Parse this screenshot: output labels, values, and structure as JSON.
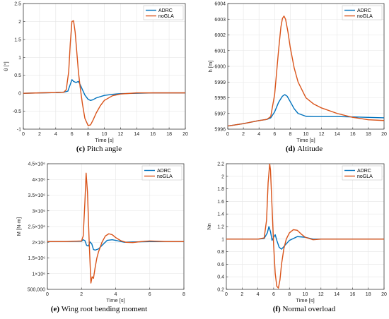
{
  "colors": {
    "ADRC": "#0072BD",
    "noGLA": "#D95319",
    "grid": "#e6e6e6",
    "axis": "#262626"
  },
  "chart_data": [
    {
      "type": "line",
      "caption_label": "(c)",
      "caption_text": "Pitch angle",
      "xlabel": "Time [s]",
      "ylabel": "θ [°]",
      "xlim": [
        0,
        20
      ],
      "ylim": [
        -1,
        2.5
      ],
      "xticks": [
        0,
        2,
        4,
        6,
        8,
        10,
        12,
        14,
        16,
        18,
        20
      ],
      "yticks": [
        -1,
        -0.5,
        0,
        0.5,
        1,
        1.5,
        2,
        2.5
      ],
      "ytick_labels": [
        "-1",
        "-0.5",
        "0",
        "0.5",
        "1",
        "1.5",
        "2",
        "2.5"
      ],
      "grid": true,
      "legend": "top-right",
      "series": [
        {
          "name": "ADRC",
          "x": [
            0,
            2,
            4,
            5,
            5.5,
            5.8,
            6.0,
            6.2,
            6.5,
            6.8,
            7.0,
            7.3,
            7.6,
            8.0,
            8.3,
            8.6,
            9.0,
            10,
            11,
            12,
            14,
            16,
            18,
            20
          ],
          "y": [
            0.0,
            0.01,
            0.02,
            0.03,
            0.06,
            0.25,
            0.38,
            0.33,
            0.3,
            0.33,
            0.25,
            0.1,
            -0.05,
            -0.17,
            -0.2,
            -0.18,
            -0.13,
            -0.06,
            -0.03,
            -0.01,
            0.0,
            0.01,
            0.01,
            0.01
          ]
        },
        {
          "name": "noGLA",
          "x": [
            0,
            2,
            4,
            5,
            5.3,
            5.6,
            5.8,
            6.0,
            6.2,
            6.4,
            6.6,
            6.8,
            7.0,
            7.3,
            7.6,
            8.0,
            8.3,
            8.6,
            9.0,
            9.5,
            10,
            11,
            12,
            14,
            16,
            18,
            20
          ],
          "y": [
            0.0,
            0.01,
            0.02,
            0.03,
            0.1,
            0.6,
            1.4,
            2.0,
            2.02,
            1.7,
            1.15,
            0.6,
            0.2,
            -0.3,
            -0.7,
            -0.9,
            -0.88,
            -0.75,
            -0.55,
            -0.35,
            -0.2,
            -0.07,
            -0.02,
            0.01,
            0.01,
            0.01,
            0.01
          ]
        }
      ]
    },
    {
      "type": "line",
      "caption_label": "(d)",
      "caption_text": "Altitude",
      "xlabel": "Time [s]",
      "ylabel": "h [m]",
      "xlim": [
        0,
        20
      ],
      "ylim": [
        5996,
        6004
      ],
      "xticks": [
        0,
        2,
        4,
        6,
        8,
        10,
        12,
        14,
        16,
        18,
        20
      ],
      "yticks": [
        5996,
        5997,
        5998,
        5999,
        6000,
        6001,
        6002,
        6003,
        6004
      ],
      "ytick_labels": [
        "5996",
        "5997",
        "5998",
        "5999",
        "6000",
        "6001",
        "6002",
        "6003",
        "6004"
      ],
      "grid": true,
      "legend": "top-right",
      "series": [
        {
          "name": "ADRC",
          "x": [
            0,
            2,
            4,
            5,
            5.5,
            6.0,
            6.5,
            7.0,
            7.3,
            7.6,
            8.0,
            8.5,
            9.0,
            10,
            11,
            12,
            14,
            16,
            18,
            20
          ],
          "y": [
            5996.2,
            5996.35,
            5996.55,
            5996.62,
            5996.72,
            5997.1,
            5997.7,
            5998.1,
            5998.2,
            5998.1,
            5997.75,
            5997.3,
            5997.0,
            5996.82,
            5996.8,
            5996.8,
            5996.8,
            5996.78,
            5996.75,
            5996.72
          ]
        },
        {
          "name": "noGLA",
          "x": [
            0,
            2,
            4,
            5,
            5.5,
            6.0,
            6.5,
            6.8,
            7.0,
            7.2,
            7.4,
            7.7,
            8.0,
            8.5,
            9.0,
            10,
            11,
            12,
            14,
            16,
            18,
            20
          ],
          "y": [
            5996.2,
            5996.35,
            5996.55,
            5996.62,
            5996.8,
            5998.2,
            6001.0,
            6002.5,
            6003.05,
            6003.2,
            6003.0,
            6002.2,
            6001.2,
            5999.9,
            5999.0,
            5998.0,
            5997.6,
            5997.35,
            5997.0,
            5996.75,
            5996.6,
            5996.55
          ]
        }
      ]
    },
    {
      "type": "line",
      "caption_label": "(e)",
      "caption_text": "Wing root bending moment",
      "xlabel": "Time [s]",
      "ylabel": "M [N·m]",
      "xlim": [
        0,
        8
      ],
      "ylim": [
        500000,
        4500000
      ],
      "xticks": [
        0,
        2,
        4,
        6,
        8
      ],
      "yticks": [
        500000,
        1000000,
        1500000,
        2000000,
        2500000,
        3000000,
        3500000,
        4000000,
        4500000
      ],
      "ytick_labels": [
        "500,000",
        "1×10⁶",
        "1.5×10⁶",
        "2×10⁶",
        "2.5×10⁶",
        "3×10⁶",
        "3.5×10⁶",
        "4×10⁶",
        "4.5×10⁶"
      ],
      "grid": true,
      "legend": "top-right",
      "series": [
        {
          "name": "ADRC",
          "x": [
            0,
            1,
            2,
            2.1,
            2.2,
            2.3,
            2.4,
            2.5,
            2.6,
            2.7,
            2.8,
            3.0,
            3.2,
            3.5,
            3.8,
            4.0,
            4.5,
            5,
            6,
            7,
            8
          ],
          "y": [
            2020000,
            2020000,
            2030000,
            2080000,
            2050000,
            1900000,
            1880000,
            2010000,
            1950000,
            1770000,
            1750000,
            1790000,
            1900000,
            2060000,
            2080000,
            2060000,
            2000000,
            2010000,
            2020000,
            2020000,
            2020000
          ]
        },
        {
          "name": "noGLA",
          "x": [
            0,
            1,
            2,
            2.1,
            2.2,
            2.27,
            2.35,
            2.45,
            2.55,
            2.62,
            2.7,
            2.8,
            2.9,
            3.0,
            3.2,
            3.4,
            3.6,
            3.8,
            4.0,
            4.3,
            4.6,
            5,
            5.5,
            6,
            7,
            8
          ],
          "y": [
            2020000,
            2020000,
            2040000,
            2200000,
            3300000,
            4200000,
            3600000,
            2000000,
            700000,
            900000,
            850000,
            1200000,
            1500000,
            1700000,
            2000000,
            2200000,
            2270000,
            2240000,
            2150000,
            2050000,
            2000000,
            1990000,
            2020000,
            2040000,
            2020000,
            2020000
          ]
        }
      ]
    },
    {
      "type": "line",
      "caption_label": "(f)",
      "caption_text": "Normal overload",
      "xlabel": "Time [s]",
      "ylabel": "Nn",
      "xlim": [
        0,
        20
      ],
      "ylim": [
        0.2,
        2.2
      ],
      "xticks": [
        0,
        2,
        4,
        6,
        8,
        10,
        12,
        14,
        16,
        18,
        20
      ],
      "yticks": [
        0.2,
        0.4,
        0.6,
        0.8,
        1,
        1.2,
        1.4,
        1.6,
        1.8,
        2,
        2.2
      ],
      "ytick_labels": [
        "0.2",
        "0.4",
        "0.6",
        "0.8",
        "1",
        "1.2",
        "1.4",
        "1.6",
        "1.8",
        "2",
        "2.2"
      ],
      "grid": true,
      "legend": "top-right",
      "series": [
        {
          "name": "ADRC",
          "x": [
            0,
            2,
            4,
            4.8,
            5.2,
            5.4,
            5.6,
            5.8,
            6.0,
            6.2,
            6.4,
            6.7,
            7.0,
            7.5,
            8.0,
            9.0,
            10,
            11,
            12,
            14,
            16,
            18,
            20
          ],
          "y": [
            1.0,
            1.0,
            1.0,
            1.01,
            1.1,
            1.2,
            1.12,
            0.98,
            1.03,
            1.07,
            0.98,
            0.87,
            0.84,
            0.91,
            0.98,
            1.04,
            1.03,
            1.0,
            1.0,
            1.0,
            1.0,
            1.0,
            1.0
          ]
        },
        {
          "name": "noGLA",
          "x": [
            0,
            2,
            4,
            4.8,
            5.1,
            5.3,
            5.5,
            5.6,
            5.8,
            6.0,
            6.2,
            6.4,
            6.6,
            6.8,
            7.0,
            7.3,
            7.6,
            8.0,
            8.5,
            9.0,
            9.5,
            10,
            11,
            12,
            14,
            16,
            18,
            20
          ],
          "y": [
            1.0,
            1.0,
            1.0,
            1.02,
            1.3,
            1.9,
            2.2,
            2.1,
            1.5,
            0.9,
            0.45,
            0.25,
            0.22,
            0.35,
            0.6,
            0.85,
            1.0,
            1.1,
            1.15,
            1.14,
            1.08,
            1.03,
            0.99,
            1.0,
            1.0,
            1.0,
            1.0,
            1.0
          ]
        }
      ]
    }
  ]
}
